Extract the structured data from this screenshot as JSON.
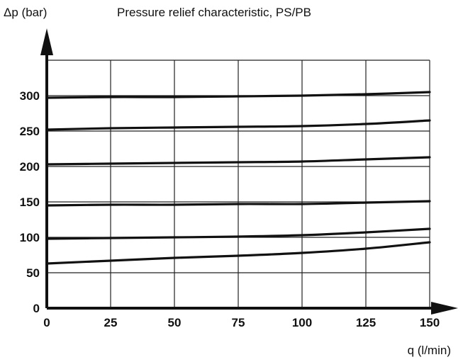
{
  "chart_data": {
    "type": "line",
    "title": "Pressure relief characteristic, PS/PB",
    "xlabel": "q (l/min)",
    "ylabel": "Δp (bar)",
    "xlim": [
      0,
      150
    ],
    "ylim": [
      0,
      300
    ],
    "x_ticks": [
      "0",
      "25",
      "50",
      "75",
      "100",
      "125",
      "150"
    ],
    "y_ticks": [
      "0",
      "50",
      "100",
      "150",
      "200",
      "250",
      "300"
    ],
    "grid": true,
    "legend": "none",
    "colors": {
      "line": "#111111",
      "grid": "#222222",
      "axis": "#111111"
    },
    "x": [
      0,
      25,
      50,
      75,
      100,
      125,
      150
    ],
    "series": [
      {
        "values": [
          63,
          67,
          71,
          74,
          78,
          84,
          93
        ]
      },
      {
        "values": [
          98,
          99,
          100,
          101,
          103,
          107,
          112
        ]
      },
      {
        "values": [
          145,
          146,
          146,
          147,
          147,
          149,
          151
        ]
      },
      {
        "values": [
          203,
          204,
          205,
          206,
          207,
          210,
          213
        ]
      },
      {
        "values": [
          252,
          254,
          255,
          256,
          257,
          260,
          265
        ]
      },
      {
        "values": [
          297,
          298,
          298,
          299,
          300,
          302,
          305
        ]
      }
    ]
  }
}
